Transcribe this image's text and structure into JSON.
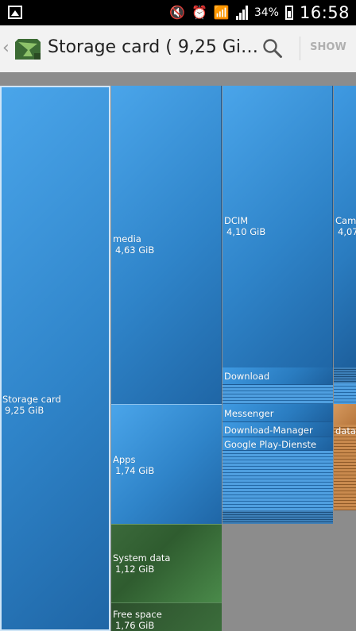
{
  "status_bar": {
    "battery_percent": "34%",
    "time": "16:58"
  },
  "action_bar": {
    "title": "Storage card ( 9,25 Gi…",
    "show_label": "SHOW"
  },
  "treemap": {
    "root": {
      "name": "Storage card",
      "size": "9,25 GiB"
    },
    "media": {
      "name": "media",
      "size": "4,63 GiB"
    },
    "dcim": {
      "name": "DCIM",
      "size": "4,10 GiB"
    },
    "camera": {
      "name": "Cam…",
      "size": "4,07…"
    },
    "download": {
      "name": "Download"
    },
    "apps": {
      "name": "Apps",
      "size": "1,74 GiB"
    },
    "messenger": {
      "name": "Messenger"
    },
    "download_manager": {
      "name": "Download-Manager"
    },
    "google_play": {
      "name": "Google Play-Dienste"
    },
    "data": {
      "name": "data"
    },
    "system_data": {
      "name": "System data",
      "size": "1,12 GiB"
    },
    "free_space": {
      "name": "Free space",
      "size": "1,76 GiB"
    }
  }
}
